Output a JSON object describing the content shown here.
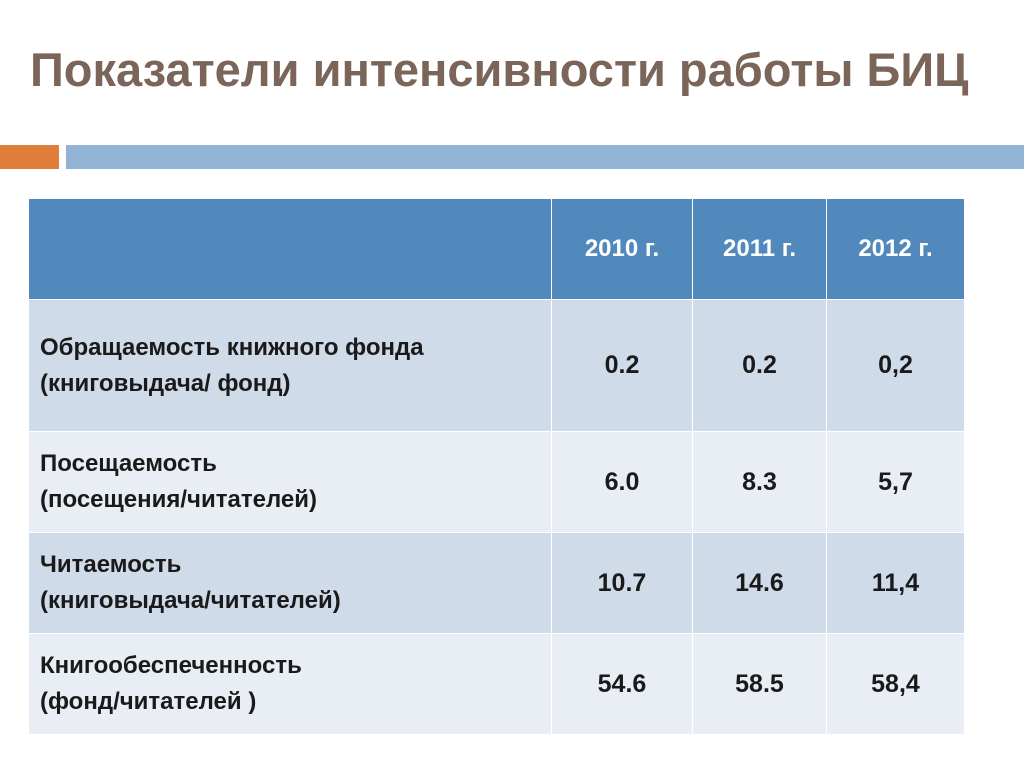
{
  "slide": {
    "title": "Показатели интенсивности работы БИЦ"
  },
  "colors": {
    "title": "#7a6558",
    "accent_bar": "#e07f3c",
    "main_bar": "#92b3d4",
    "header_bg": "#5289bd",
    "row_light": "#e9eef5",
    "row_dark": "#d0dbea"
  },
  "table": {
    "headers": [
      "",
      "2010 г.",
      "2011 г.",
      "2012 г."
    ],
    "rows": [
      {
        "label_line1": "Обращаемость книжного фонда",
        "label_line2": "(книговыдача/ фонд)",
        "values": [
          "0.2",
          "0.2",
          "0,2"
        ]
      },
      {
        "label_line1": "Посещаемость",
        "label_line2": "(посещения/читателей)",
        "values": [
          "6.0",
          "8.3",
          "5,7"
        ]
      },
      {
        "label_line1": "Читаемость",
        "label_line2": "(книговыдача/читателей)",
        "values": [
          "10.7",
          "14.6",
          "11,4"
        ]
      },
      {
        "label_line1": "Книгообеспеченность",
        "label_line2": "(фонд/читателей )",
        "values": [
          "54.6",
          "58.5",
          "58,4"
        ]
      }
    ]
  }
}
